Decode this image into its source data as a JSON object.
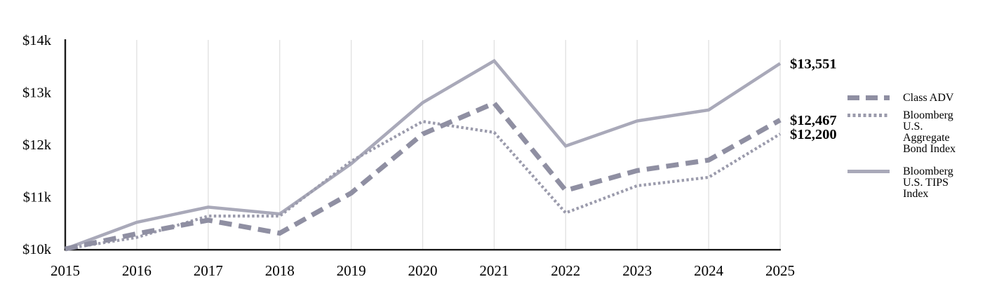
{
  "chart_data": {
    "type": "line",
    "title": "",
    "xlabel": "",
    "ylabel": "",
    "x_labels": [
      "2015",
      "2016",
      "2017",
      "2018",
      "2019",
      "2020",
      "2021",
      "2022",
      "2023",
      "2024",
      "2025"
    ],
    "ylim": [
      10000,
      14000
    ],
    "y_ticks": [
      {
        "label": "$14k",
        "value": 14000
      },
      {
        "label": "$13k",
        "value": 13000
      },
      {
        "label": "$12k",
        "value": 12000
      },
      {
        "label": "$11k",
        "value": 11000
      },
      {
        "label": "$10k",
        "value": 10000
      }
    ],
    "grid": "vertical-only",
    "grid_color": "#e0e0e0",
    "axis_color": "#1a1a1a",
    "label_color": "#000000",
    "legend_position": "right",
    "series": [
      {
        "name": "Class ADV",
        "style": "dashed",
        "color": "#8f8fa2",
        "end_label": "$12,467",
        "values": [
          10000,
          10290,
          10550,
          10300,
          11070,
          12200,
          12790,
          11120,
          11500,
          11700,
          12467
        ]
      },
      {
        "name": "Bloomberg U.S. Aggregate Bond Index",
        "style": "dotted",
        "color": "#9b9bac",
        "end_label": "$12,200",
        "values": [
          10000,
          10220,
          10630,
          10630,
          11680,
          12440,
          12230,
          10690,
          11210,
          11370,
          12200
        ]
      },
      {
        "name": "Bloomberg U.S. TIPS Index",
        "style": "solid",
        "color": "#a9a9b9",
        "end_label": "$13,551",
        "values": [
          10000,
          10510,
          10800,
          10670,
          11630,
          12800,
          13600,
          11970,
          12450,
          12660,
          13551
        ]
      }
    ]
  }
}
